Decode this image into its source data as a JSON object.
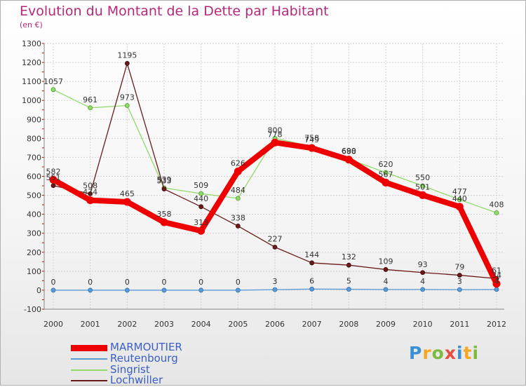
{
  "title": "Evolution du Montant de la Dette par Habitant",
  "subtitle": "(en €)",
  "logo": {
    "text": "Proxiti",
    "colors": [
      "#3b8fd6",
      "#f5a623",
      "#7cbb3b",
      "#e84c3d",
      "#3b8fd6",
      "#f5a623",
      "#7cbb3b"
    ]
  },
  "chart_data": {
    "type": "line",
    "x": [
      "2000",
      "2001",
      "2002",
      "2003",
      "2004",
      "2005",
      "2006",
      "2007",
      "2008",
      "2009",
      "2010",
      "2011",
      "2012"
    ],
    "ylim": [
      -100,
      1300
    ],
    "yticks": [
      -100,
      0,
      100,
      200,
      300,
      400,
      500,
      600,
      700,
      800,
      900,
      1000,
      1100,
      1200,
      1300
    ],
    "grid": true,
    "legend_position": "bottom-left",
    "series": [
      {
        "name": "MARMOUTIER",
        "color": "#ee0000",
        "values": [
          582,
          474,
          465,
          358,
          313,
          626,
          778,
          749,
          688,
          567,
          501,
          440,
          34
        ]
      },
      {
        "name": "Reutenbourg",
        "color": "#5b9bd5",
        "values": [
          0,
          0,
          0,
          0,
          0,
          0,
          3,
          6,
          5,
          4,
          4,
          3,
          4
        ]
      },
      {
        "name": "Singrist",
        "color": "#8fdb6a",
        "values": [
          1057,
          961,
          973,
          539,
          509,
          484,
          800,
          758,
          690,
          620,
          550,
          477,
          408
        ]
      },
      {
        "name": "Lochwiller",
        "color": "#6b1a1a",
        "values": [
          551,
          508,
          1195,
          533,
          440,
          338,
          227,
          144,
          132,
          109,
          93,
          79,
          61
        ]
      }
    ]
  }
}
